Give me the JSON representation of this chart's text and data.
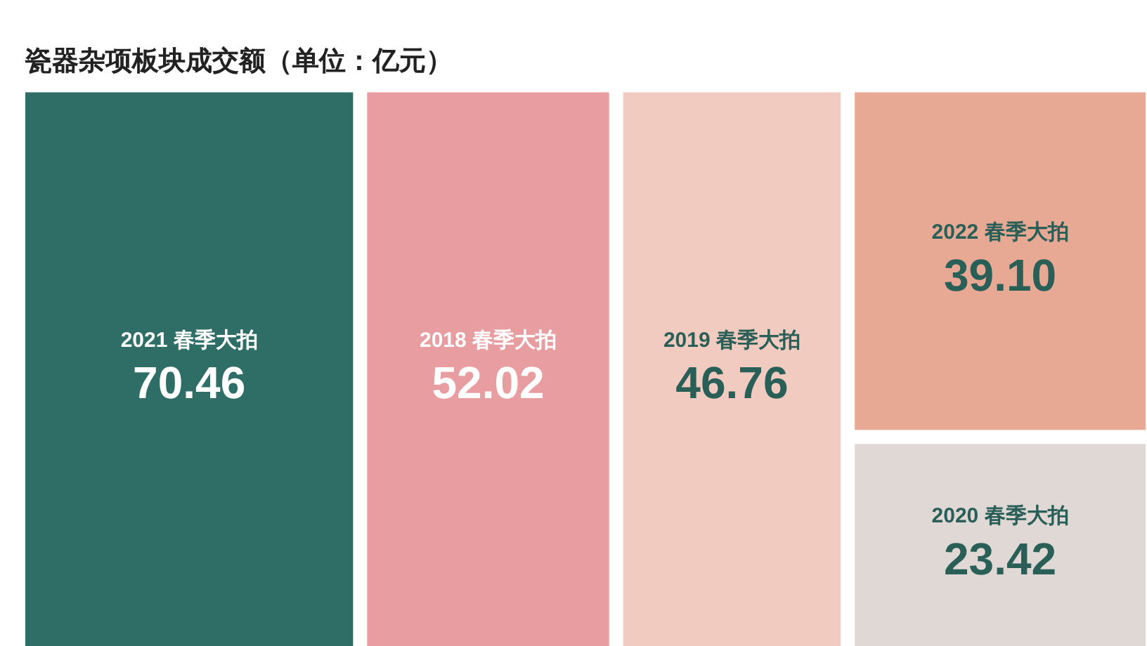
{
  "chart_data": {
    "type": "other",
    "title": "瓷器杂项板块成交额（单位：亿元）",
    "categories": [
      "2021 春季大拍",
      "2018 春季大拍",
      "2019 春季大拍",
      "2022 春季大拍",
      "2020 春季大拍"
    ],
    "values": [
      70.46,
      52.02,
      46.76,
      39.1,
      23.42
    ],
    "value_labels": [
      "70.46",
      "52.02",
      "46.76",
      "39.10",
      "23.42"
    ],
    "colors": [
      "#2e6e66",
      "#e89da1",
      "#f2cbc0",
      "#e8a994",
      "#e0d8d5"
    ]
  }
}
